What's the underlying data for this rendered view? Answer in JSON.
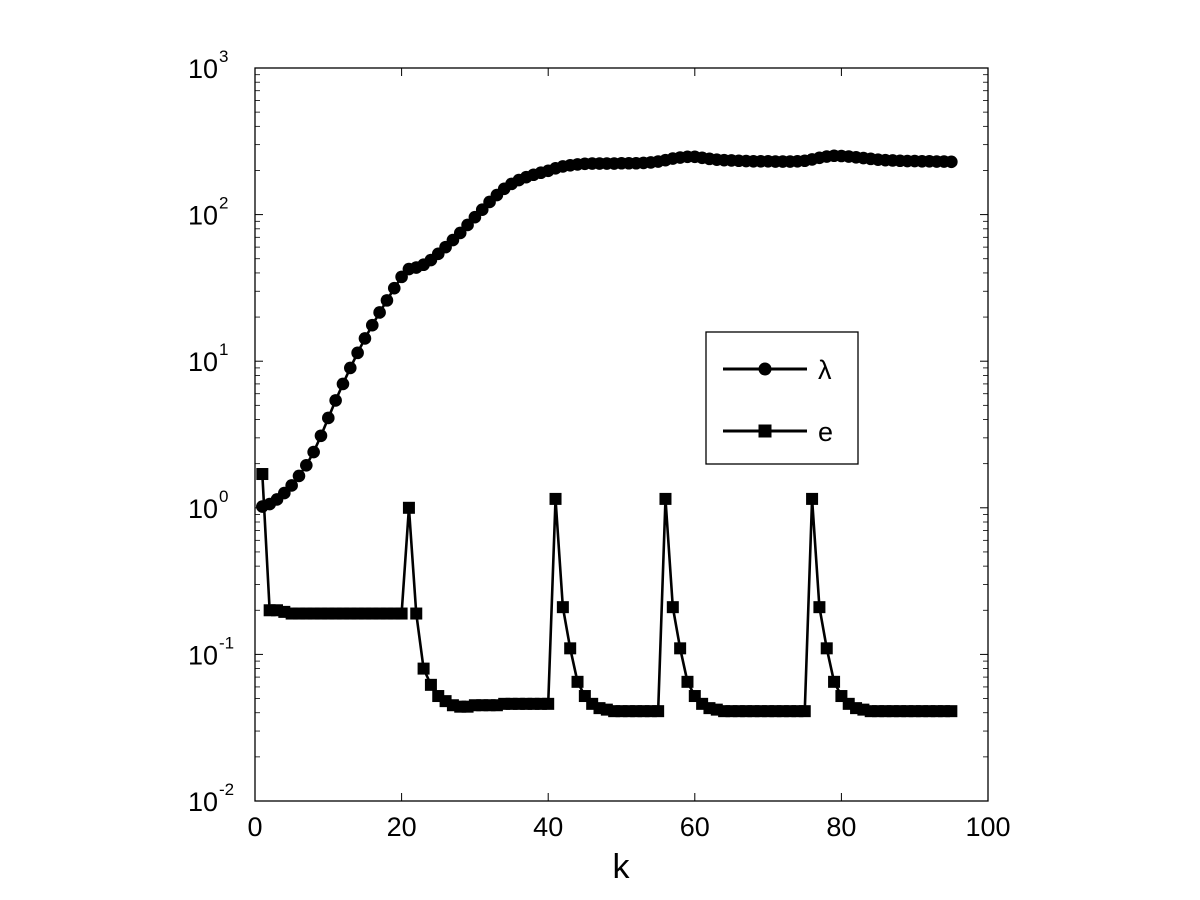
{
  "chart_data": {
    "type": "line",
    "xlabel": "k",
    "ylabel": "",
    "xlim": [
      0,
      100
    ],
    "ylim": [
      0.01,
      1000
    ],
    "yscale": "log",
    "grid": false,
    "legend_position": "center-right",
    "x_ticks": [
      "0",
      "20",
      "40",
      "60",
      "80",
      "100"
    ],
    "y_ticks": [
      {
        "base": "10",
        "exp": "-2",
        "value": 0.01
      },
      {
        "base": "10",
        "exp": "-1",
        "value": 0.1
      },
      {
        "base": "10",
        "exp": "0",
        "value": 1
      },
      {
        "base": "10",
        "exp": "1",
        "value": 10
      },
      {
        "base": "10",
        "exp": "2",
        "value": 100
      },
      {
        "base": "10",
        "exp": "3",
        "value": 1000
      }
    ],
    "series": [
      {
        "name": "λ",
        "marker": "circle",
        "color": "#000000",
        "x": [
          1,
          2,
          3,
          4,
          5,
          6,
          7,
          8,
          9,
          10,
          11,
          12,
          13,
          14,
          15,
          16,
          17,
          18,
          19,
          20,
          21,
          22,
          23,
          24,
          25,
          26,
          27,
          28,
          29,
          30,
          31,
          32,
          33,
          34,
          35,
          36,
          37,
          38,
          39,
          40,
          41,
          42,
          43,
          44,
          45,
          46,
          47,
          48,
          49,
          50,
          51,
          52,
          53,
          54,
          55,
          56,
          57,
          58,
          59,
          60,
          61,
          62,
          63,
          64,
          65,
          66,
          67,
          68,
          69,
          70,
          71,
          72,
          73,
          74,
          75,
          76,
          77,
          78,
          79,
          80,
          81,
          82,
          83,
          84,
          85,
          86,
          87,
          88,
          89,
          90,
          91,
          92,
          93,
          94,
          95
        ],
        "y": [
          1.02,
          1.06,
          1.14,
          1.26,
          1.42,
          1.65,
          1.95,
          2.4,
          3.1,
          4.1,
          5.4,
          7.0,
          9.0,
          11.4,
          14.3,
          17.6,
          21.5,
          26.0,
          31.5,
          37.6,
          42.5,
          43.5,
          45.5,
          49,
          54,
          60,
          67,
          75,
          85,
          96,
          108,
          122,
          136,
          150,
          162,
          172,
          180,
          187,
          193,
          199,
          207,
          213,
          217,
          220,
          222,
          223,
          223,
          223,
          223,
          224,
          224,
          224,
          225,
          227,
          230,
          235,
          241,
          245,
          248,
          248,
          244,
          240,
          237,
          235,
          234,
          233,
          232,
          231,
          231,
          231,
          230,
          230,
          230,
          231,
          233,
          238,
          244,
          249,
          252,
          251,
          249,
          246,
          243,
          240,
          237,
          235,
          234,
          233,
          232,
          232,
          231,
          231,
          230,
          230,
          229
        ]
      },
      {
        "name": "e",
        "marker": "square",
        "color": "#000000",
        "x": [
          1,
          2,
          3,
          4,
          5,
          6,
          7,
          8,
          9,
          10,
          11,
          12,
          13,
          14,
          15,
          16,
          17,
          18,
          19,
          20,
          21,
          22,
          23,
          24,
          25,
          26,
          27,
          28,
          29,
          30,
          31,
          32,
          33,
          34,
          35,
          36,
          37,
          38,
          39,
          40,
          41,
          42,
          43,
          44,
          45,
          46,
          47,
          48,
          49,
          50,
          51,
          52,
          53,
          54,
          55,
          56,
          57,
          58,
          59,
          60,
          61,
          62,
          63,
          64,
          65,
          66,
          67,
          68,
          69,
          70,
          71,
          72,
          73,
          74,
          75,
          76,
          77,
          78,
          79,
          80,
          81,
          82,
          83,
          84,
          85,
          86,
          87,
          88,
          89,
          90,
          91,
          92,
          93,
          94,
          95
        ],
        "y": [
          1.7,
          0.2,
          0.2,
          0.195,
          0.19,
          0.19,
          0.19,
          0.19,
          0.19,
          0.19,
          0.19,
          0.19,
          0.19,
          0.19,
          0.19,
          0.19,
          0.19,
          0.19,
          0.19,
          0.19,
          1.0,
          0.19,
          0.08,
          0.062,
          0.052,
          0.048,
          0.045,
          0.044,
          0.044,
          0.045,
          0.045,
          0.045,
          0.045,
          0.046,
          0.046,
          0.046,
          0.046,
          0.046,
          0.046,
          0.046,
          1.15,
          0.21,
          0.11,
          0.065,
          0.052,
          0.046,
          0.043,
          0.042,
          0.041,
          0.041,
          0.041,
          0.041,
          0.041,
          0.041,
          0.041,
          1.15,
          0.21,
          0.11,
          0.065,
          0.052,
          0.046,
          0.043,
          0.042,
          0.041,
          0.041,
          0.041,
          0.041,
          0.041,
          0.041,
          0.041,
          0.041,
          0.041,
          0.041,
          0.041,
          0.041,
          1.15,
          0.21,
          0.11,
          0.065,
          0.052,
          0.046,
          0.043,
          0.042,
          0.041,
          0.041,
          0.041,
          0.041,
          0.041,
          0.041,
          0.041,
          0.041,
          0.041,
          0.041,
          0.041,
          0.041
        ]
      }
    ]
  }
}
